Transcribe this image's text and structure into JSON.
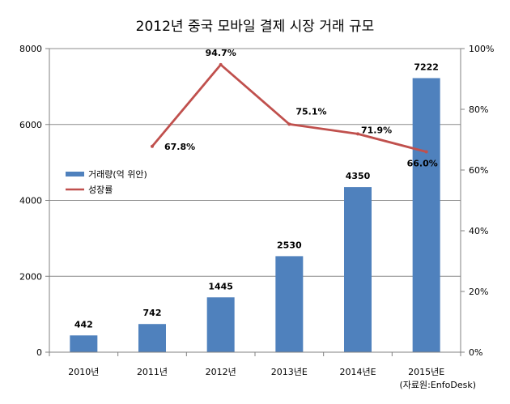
{
  "chart_data": {
    "type": "bar",
    "title": "2012년 중국 모바일 결제 시장 거래 규모",
    "categories": [
      "2010년",
      "2011년",
      "2012년",
      "2013년E",
      "2014년E",
      "2015년E"
    ],
    "series": [
      {
        "name": "거래량(억 위안)",
        "type": "bar",
        "axis": "left",
        "color": "#4F81BD",
        "values": [
          442,
          742,
          1445,
          2530,
          4350,
          7222
        ],
        "labels": [
          "442",
          "742",
          "1445",
          "2530",
          "4350",
          "7222"
        ]
      },
      {
        "name": "성장률",
        "type": "line",
        "axis": "right",
        "color": "#C0504D",
        "values": [
          null,
          67.8,
          94.7,
          75.1,
          71.9,
          66.0
        ],
        "labels": [
          "",
          "67.8%",
          "94.7%",
          "75.1%",
          "71.9%",
          "66.0%"
        ]
      }
    ],
    "y_left": {
      "min": 0,
      "max": 8000,
      "ticks": [
        0,
        2000,
        4000,
        6000,
        8000
      ],
      "tick_labels": [
        "0",
        "2000",
        "4000",
        "6000",
        "8000"
      ]
    },
    "y_right": {
      "min": 0,
      "max": 100,
      "ticks": [
        0,
        20,
        40,
        60,
        80,
        100
      ],
      "tick_labels": [
        "0%",
        "20%",
        "40%",
        "60%",
        "80%",
        "100%"
      ]
    },
    "grid": true,
    "legend_position": "center-left",
    "source": "(자료원:EnfoDesk)"
  }
}
